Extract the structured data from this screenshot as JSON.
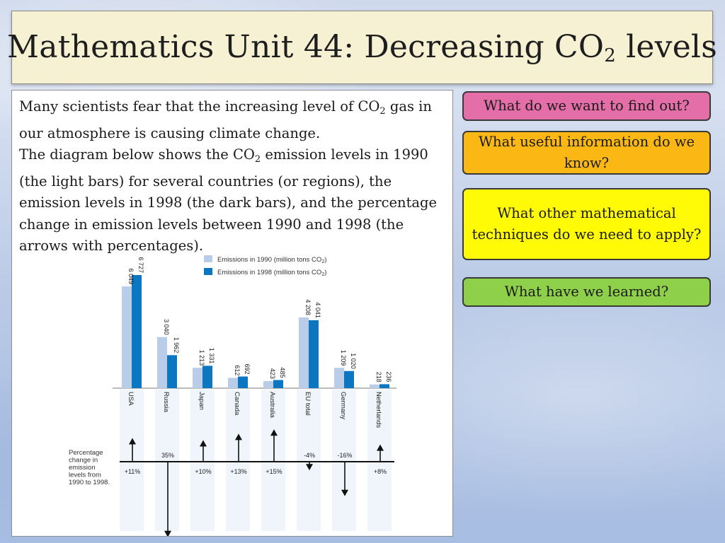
{
  "title": {
    "main": "Mathematics Unit 44: Decreasing CO",
    "sub": "2",
    "end": " levels"
  },
  "intro": {
    "p1_a": "Many scientists fear that the increasing level of CO",
    "p1_sub": "2",
    "p1_b": " gas in our atmosphere is causing climate change.",
    "p2_a": "The diagram below shows the CO",
    "p2_sub": "2",
    "p2_b": " emission levels in 1990 (the light bars) for several countries (or regions), the emission levels in 1998 (the dark bars), and the percentage change in emission levels between 1990 and 1998 (the arrows with percentages)."
  },
  "buttons": {
    "find": "What do we want to find out?",
    "info": "What useful information do we know?",
    "tech": "What other mathematical techniques do we need to apply?",
    "learn": "What have we learned?"
  },
  "colors": {
    "bar_1990": "#b9cce8",
    "bar_1998": "#0c77c0",
    "btn_find": "#e46ea7",
    "btn_info": "#fbb814",
    "btn_tech": "#fffb07",
    "btn_learn": "#8fd04b",
    "title_bg": "#f6f1d2"
  },
  "chart_data": {
    "type": "bar",
    "categories": [
      "USA",
      "Russia",
      "Japan",
      "Canada",
      "Australia",
      "EU total",
      "Germany",
      "Netherlands"
    ],
    "series": [
      {
        "name": "Emissions in 1990 (million tons CO2)",
        "values": [
          6049,
          3040,
          1213,
          612,
          423,
          4208,
          1209,
          218
        ],
        "labels": [
          "6 049",
          "3 040",
          "1 213",
          "612",
          "423",
          "4 208",
          "1 209",
          "218"
        ]
      },
      {
        "name": "Emissions in 1998 (million tons CO2)",
        "values": [
          6727,
          1962,
          1331,
          692,
          485,
          4041,
          1020,
          236
        ],
        "labels": [
          "6 727",
          "1 962",
          "1 331",
          "692",
          "485",
          "4 041",
          "1 020",
          "236"
        ]
      }
    ],
    "legend": {
      "entry_1990": "Emissions in 1990 (million tons CO",
      "entry_1998": "Emissions in 1998 (million tons CO",
      "sub": "2",
      "close": ")"
    },
    "percent_change": {
      "values": [
        11,
        -35,
        10,
        13,
        15,
        -4,
        -16,
        8
      ],
      "labels": [
        "+11%",
        "35%",
        "+10%",
        "+13%",
        "+15%",
        "-4%",
        "-16%",
        "+8%"
      ]
    },
    "percent_caption": [
      "Percentage",
      "change in",
      "emission",
      "levels from",
      "1990 to 1998."
    ],
    "ylim": [
      0,
      6727
    ]
  }
}
